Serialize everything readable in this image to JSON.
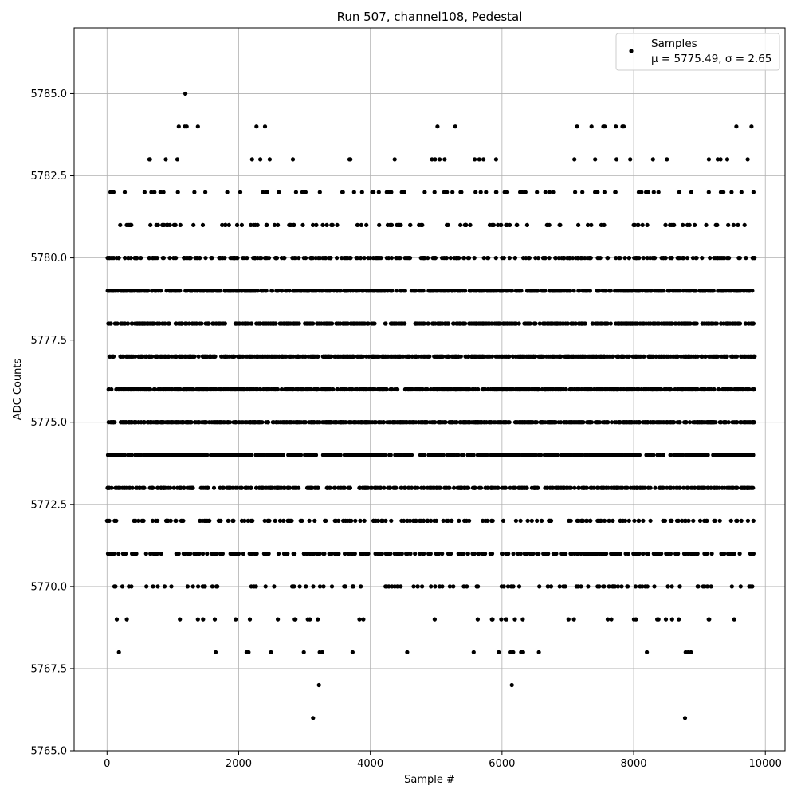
{
  "chart_data": {
    "type": "scatter",
    "title": "Run 507, channel108, Pedestal",
    "xlabel": "Sample #",
    "ylabel": "ADC Counts",
    "xlim": [
      -500,
      10300
    ],
    "ylim": [
      5765.0,
      5787.0
    ],
    "x_ticks": [
      0,
      2000,
      4000,
      6000,
      8000,
      10000
    ],
    "y_ticks": [
      5765.0,
      5767.5,
      5770.0,
      5772.5,
      5775.0,
      5777.5,
      5780.0,
      5782.5,
      5785.0
    ],
    "x_tick_labels": [
      "0",
      "2000",
      "4000",
      "6000",
      "8000",
      "10000"
    ],
    "y_tick_labels": [
      "5765.0",
      "5767.5",
      "5770.0",
      "5772.5",
      "5775.0",
      "5777.5",
      "5780.0",
      "5782.5",
      "5785.0"
    ],
    "grid": true,
    "legend_position": "top-right",
    "legend": {
      "label": "Samples",
      "stats_text": "μ = 5775.49, σ = 2.65"
    },
    "marker_color": "#000000",
    "sample_count": 9840,
    "level_density": [
      {
        "y": 5766,
        "density": 0.0002
      },
      {
        "y": 5767,
        "density": 0.0002
      },
      {
        "y": 5768,
        "density": 0.002
      },
      {
        "y": 5769,
        "density": 0.004
      },
      {
        "y": 5770,
        "density": 0.012
      },
      {
        "y": 5771,
        "density": 0.03
      },
      {
        "y": 5772,
        "density": 0.018
      },
      {
        "y": 5773,
        "density": 0.05
      },
      {
        "y": 5774,
        "density": 0.065
      },
      {
        "y": 5775,
        "density": 0.075
      },
      {
        "y": 5776,
        "density": 0.075
      },
      {
        "y": 5777,
        "density": 0.07
      },
      {
        "y": 5778,
        "density": 0.055
      },
      {
        "y": 5779,
        "density": 0.05
      },
      {
        "y": 5780,
        "density": 0.028
      },
      {
        "y": 5781,
        "density": 0.012
      },
      {
        "y": 5782,
        "density": 0.008
      },
      {
        "y": 5783,
        "density": 0.003
      },
      {
        "y": 5784,
        "density": 0.002
      },
      {
        "y": 5785,
        "density": 0.0002
      }
    ],
    "points": [
      [
        3130,
        5766
      ],
      [
        8780,
        5766
      ],
      [
        3220,
        5767
      ],
      [
        6150,
        5767
      ],
      [
        180,
        5768
      ],
      [
        1650,
        5768
      ],
      [
        2120,
        5768
      ],
      [
        2150,
        5768
      ],
      [
        2490,
        5768
      ],
      [
        2990,
        5768
      ],
      [
        3230,
        5768
      ],
      [
        3270,
        5768
      ],
      [
        3730,
        5768
      ],
      [
        4560,
        5768
      ],
      [
        5570,
        5768
      ],
      [
        5950,
        5768
      ],
      [
        6130,
        5768
      ],
      [
        6170,
        5768
      ],
      [
        6290,
        5768
      ],
      [
        6320,
        5768
      ],
      [
        6560,
        5768
      ],
      [
        8200,
        5768
      ],
      [
        8790,
        5768
      ],
      [
        8830,
        5768
      ],
      [
        8870,
        5768
      ],
      [
        1190,
        5785
      ]
    ],
    "upper_markers": [
      [
        1090,
        5784
      ],
      [
        1180,
        5784
      ],
      [
        1210,
        5784
      ],
      [
        1380,
        5784
      ],
      [
        2270,
        5784
      ],
      [
        2400,
        5784
      ],
      [
        5020,
        5784
      ],
      [
        5290,
        5784
      ],
      [
        7140,
        5784
      ],
      [
        7360,
        5784
      ],
      [
        7540,
        5784
      ],
      [
        7560,
        5784
      ],
      [
        7730,
        5784
      ],
      [
        7830,
        5784
      ],
      [
        7850,
        5784
      ],
      [
        9560,
        5784
      ],
      [
        9790,
        5784
      ]
    ]
  }
}
